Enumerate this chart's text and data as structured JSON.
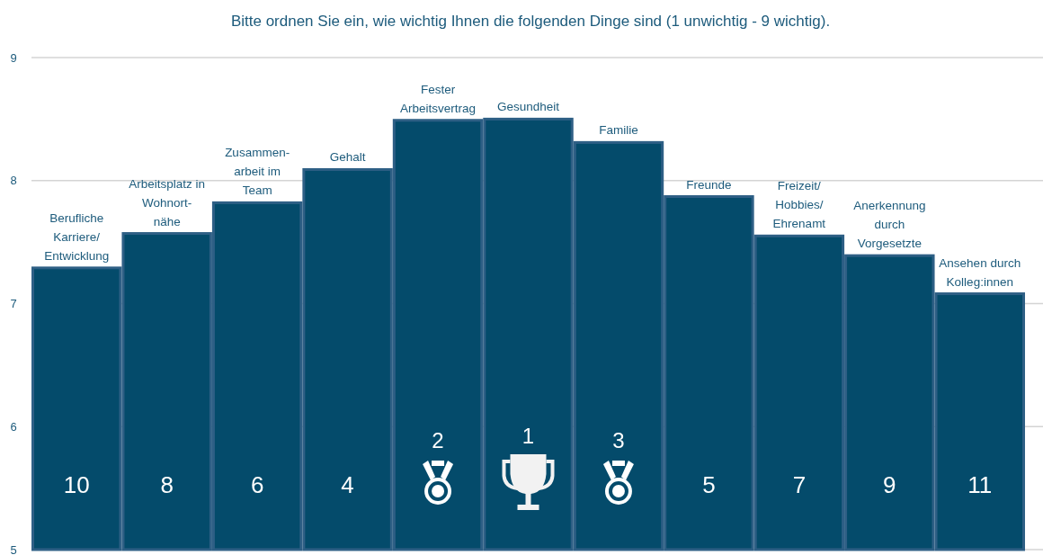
{
  "chart_data": {
    "type": "bar",
    "title": "Bitte ordnen Sie ein, wie wichtig Ihnen die folgenden Dinge sind (1 unwichtig - 9 wichtig).",
    "categories": [
      "Berufliche\nKarriere/\nEntwicklung",
      "Arbeitsplatz in\nWohnort-\nnähe",
      "Zusammen-\narbeit im\nTeam",
      "Gehalt",
      "Fester\nArbeitsvertrag",
      "Gesundheit",
      "Familie",
      "Freunde",
      "Freizeit/\nHobbies/\nEhrenamt",
      "Anerkennung\ndurch\nVorgesetzte",
      "Ansehen durch\nKolleg:innen"
    ],
    "values": [
      7.29,
      7.57,
      7.82,
      8.09,
      8.49,
      8.5,
      8.31,
      7.87,
      7.55,
      7.39,
      7.08
    ],
    "color": "#044b6b",
    "annotations": [
      "10",
      "8",
      "6",
      "4",
      "2",
      "1",
      "3",
      "5",
      "7",
      "9",
      "11"
    ],
    "ylim": [
      5,
      9
    ],
    "yticks": [
      5,
      6,
      7,
      8,
      9
    ],
    "grid": "y"
  }
}
